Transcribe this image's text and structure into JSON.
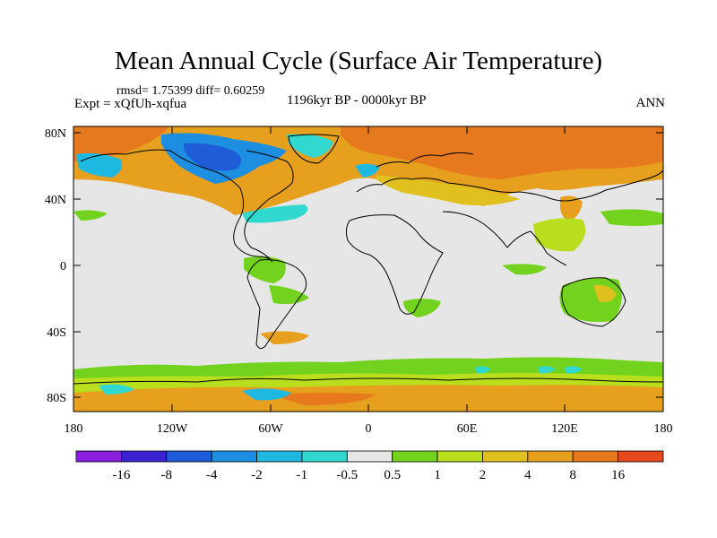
{
  "title": "Mean Annual Cycle (Surface Air Temperature)",
  "stats": "rmsd= 1.75399 diff= 0.60259",
  "experiment": "Expt = xQfUh-xqfua",
  "period": "1196kyr BP - 0000kyr BP",
  "season": "ANN",
  "axes": {
    "lat_ticks": [
      "80N",
      "40N",
      "0",
      "40S",
      "80S"
    ],
    "lon_ticks": [
      "180",
      "120W",
      "60W",
      "0",
      "60E",
      "120E",
      "180"
    ]
  },
  "colorbar": {
    "labels": [
      "-16",
      "-8",
      "-4",
      "-2",
      "-1",
      "-0.5",
      "0.5",
      "1",
      "2",
      "4",
      "8",
      "16"
    ],
    "colors": [
      "#8a1fe0",
      "#3a22d0",
      "#1e5cd8",
      "#1e8ee0",
      "#1eb8e0",
      "#30d8d0",
      "#e6e6e6",
      "#73d21e",
      "#b8de1e",
      "#e0c01e",
      "#e6a01e",
      "#e6781e",
      "#e8481e"
    ]
  },
  "colors": {
    "neutral": "#e6e6e6",
    "coast": "#000000"
  }
}
